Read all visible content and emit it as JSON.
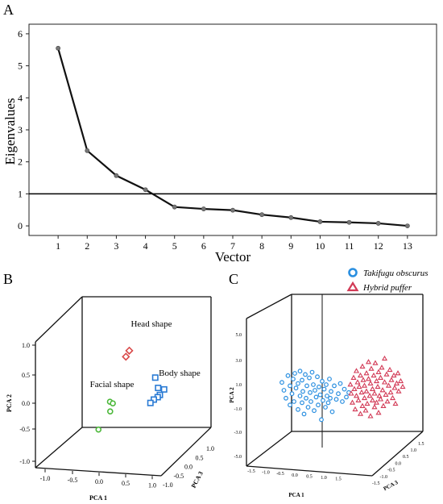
{
  "panels": {
    "a": {
      "letter": "A"
    },
    "b": {
      "letter": "B"
    },
    "c": {
      "letter": "C"
    }
  },
  "chart_data": [
    {
      "type": "line",
      "panel": "A",
      "title": "",
      "xlabel": "Vector",
      "ylabel": "Eigenvalues",
      "x": [
        1,
        2,
        3,
        4,
        5,
        6,
        7,
        8,
        9,
        10,
        11,
        12,
        13
      ],
      "x_ticks": [
        "1",
        "2",
        "3",
        "4",
        "5",
        "6",
        "7",
        "8",
        "9",
        "10",
        "11",
        "12",
        "13"
      ],
      "y": [
        5.55,
        2.35,
        1.57,
        1.13,
        0.59,
        0.53,
        0.49,
        0.35,
        0.26,
        0.13,
        0.11,
        0.08,
        0.0
      ],
      "y_ticks": [
        "0",
        "1",
        "2",
        "3",
        "4",
        "5",
        "6"
      ],
      "xlim": [
        0,
        14
      ],
      "ylim": [
        -0.3,
        6.3
      ],
      "reference_line_y": 1,
      "line_color": "#111111",
      "marker_color": "#777777"
    },
    {
      "type": "scatter",
      "panel": "B",
      "projection": "3d",
      "xlabel": "PCA 1",
      "ylabel": "PCA 2",
      "zlabel": "PCA 3",
      "x_ticks": [
        "-1.0",
        "-0.5",
        "0.0",
        "0.5",
        "1.0"
      ],
      "y_ticks": [
        "-1.0",
        "-0.5",
        "0.0",
        "0.5",
        "1.0"
      ],
      "z_ticks": [
        "-1.0",
        "-0.5",
        "0.0",
        "0.5",
        "1.0"
      ],
      "groups": [
        {
          "label": "Head shape",
          "marker": "diamond",
          "color": "#d94a4a",
          "points": [
            [
              0.1,
              0.82,
              -0.2
            ],
            [
              0.02,
              0.72,
              -0.25
            ]
          ]
        },
        {
          "label": "Body shape",
          "marker": "square",
          "color": "#2a7bd4",
          "points": [
            [
              0.55,
              0.38,
              -0.35
            ],
            [
              0.62,
              0.22,
              -0.3
            ],
            [
              0.75,
              0.2,
              -0.25
            ],
            [
              0.7,
              0.12,
              -0.15
            ],
            [
              0.72,
              0.1,
              0.05
            ],
            [
              0.6,
              0.05,
              -0.1
            ],
            [
              0.55,
              0.0,
              -0.05
            ]
          ]
        },
        {
          "label": "Facial shape",
          "marker": "circle",
          "color": "#4cb83a",
          "points": [
            [
              -0.3,
              0.0,
              -0.3
            ],
            [
              -0.22,
              -0.02,
              -0.22
            ],
            [
              -0.28,
              -0.15,
              -0.25
            ],
            [
              -0.55,
              -0.45,
              -0.4
            ]
          ]
        }
      ]
    },
    {
      "type": "scatter",
      "panel": "C",
      "projection": "3d",
      "xlabel": "PCA 1",
      "ylabel": "PCA 2",
      "zlabel": "PCA 3",
      "x_ticks": [
        "-1.5",
        "-1.0",
        "-0.5",
        "0.0",
        "0.5",
        "1.0",
        "1.5"
      ],
      "y_ticks": [
        "-5.0",
        "-3.0",
        "-1.0",
        "1.0",
        "3.0",
        "5.0"
      ],
      "z_ticks": [
        "-1.5",
        "-1.0",
        "-0.5",
        "0.0",
        "0.5",
        "1.0",
        "1.5"
      ],
      "legend": [
        {
          "label": "Takifugu obscurus",
          "marker": "circle",
          "color": "#2a8fe0"
        },
        {
          "label": "Hybrid puffer",
          "marker": "triangle",
          "color": "#d23a56"
        }
      ],
      "series": [
        {
          "name": "Takifugu obscurus",
          "marker": "circle",
          "color": "#2a8fe0",
          "points": [
            [
              -1.0,
              1.2,
              0
            ],
            [
              -0.95,
              0.5,
              0
            ],
            [
              -0.9,
              -0.2,
              0
            ],
            [
              -0.85,
              1.8,
              0
            ],
            [
              -0.8,
              0.9,
              0
            ],
            [
              -0.8,
              -0.8,
              0
            ],
            [
              -0.75,
              0.2,
              0
            ],
            [
              -0.72,
              1.5,
              0
            ],
            [
              -0.7,
              -0.5,
              0
            ],
            [
              -0.68,
              2.0,
              0
            ],
            [
              -0.65,
              0.7,
              0
            ],
            [
              -0.6,
              -1.2,
              0
            ],
            [
              -0.6,
              1.1,
              0
            ],
            [
              -0.55,
              0.0,
              0
            ],
            [
              -0.55,
              2.2,
              0
            ],
            [
              -0.5,
              -0.6,
              0
            ],
            [
              -0.5,
              1.4,
              0
            ],
            [
              -0.48,
              0.4,
              0
            ],
            [
              -0.45,
              -1.6,
              0
            ],
            [
              -0.42,
              1.9,
              0
            ],
            [
              -0.4,
              -0.2,
              0
            ],
            [
              -0.38,
              0.9,
              0
            ],
            [
              -0.35,
              -1.0,
              0
            ],
            [
              -0.32,
              1.6,
              0
            ],
            [
              -0.3,
              0.3,
              0
            ],
            [
              -0.28,
              -0.5,
              0
            ],
            [
              -0.25,
              2.1,
              0
            ],
            [
              -0.22,
              1.0,
              0
            ],
            [
              -0.2,
              -1.3,
              0
            ],
            [
              -0.18,
              0.5,
              0
            ],
            [
              -0.15,
              -0.1,
              0
            ],
            [
              -0.12,
              1.7,
              0
            ],
            [
              -0.1,
              -0.8,
              0
            ],
            [
              -0.08,
              0.8,
              0
            ],
            [
              -0.05,
              0.1,
              0
            ],
            [
              -0.02,
              -2.1,
              0
            ],
            [
              0.0,
              1.3,
              0
            ],
            [
              0.02,
              -0.4,
              0
            ],
            [
              0.05,
              0.6,
              0
            ],
            [
              0.08,
              -1.0,
              0
            ],
            [
              0.1,
              1.0,
              0
            ],
            [
              0.12,
              0.0,
              0
            ],
            [
              0.15,
              -0.6,
              0
            ],
            [
              0.18,
              1.5,
              0
            ],
            [
              0.2,
              -0.2,
              0
            ],
            [
              0.22,
              0.4,
              0
            ],
            [
              0.25,
              -1.4,
              0
            ],
            [
              0.3,
              0.9,
              0
            ],
            [
              0.35,
              -0.3,
              0
            ],
            [
              0.4,
              0.2,
              0
            ],
            [
              0.45,
              1.1,
              0
            ],
            [
              0.5,
              -0.5,
              0
            ],
            [
              0.55,
              0.6,
              0
            ],
            [
              0.6,
              -0.1,
              0
            ],
            [
              0.66,
              0.3,
              0
            ]
          ]
        },
        {
          "name": "Hybrid puffer",
          "marker": "triangle",
          "color": "#d23a56",
          "points": [
            [
              0.7,
              1.0,
              0
            ],
            [
              0.72,
              0.2,
              0
            ],
            [
              0.75,
              -0.6,
              0
            ],
            [
              0.78,
              1.6,
              0
            ],
            [
              0.8,
              0.6,
              0
            ],
            [
              0.82,
              -1.2,
              0
            ],
            [
              0.85,
              2.2,
              0
            ],
            [
              0.85,
              0.0,
              0
            ],
            [
              0.88,
              1.2,
              0
            ],
            [
              0.9,
              -0.4,
              0
            ],
            [
              0.92,
              0.8,
              0
            ],
            [
              0.95,
              -1.6,
              0
            ],
            [
              0.95,
              1.8,
              0
            ],
            [
              0.98,
              0.3,
              0
            ],
            [
              1.0,
              -0.9,
              0
            ],
            [
              1.0,
              2.6,
              0
            ],
            [
              1.02,
              1.4,
              0
            ],
            [
              1.05,
              -0.2,
              0
            ],
            [
              1.05,
              0.9,
              0
            ],
            [
              1.08,
              -1.3,
              0
            ],
            [
              1.1,
              2.0,
              0
            ],
            [
              1.1,
              0.4,
              0
            ],
            [
              1.12,
              -0.7,
              0
            ],
            [
              1.15,
              1.5,
              0
            ],
            [
              1.15,
              3.0,
              0
            ],
            [
              1.18,
              0.0,
              0
            ],
            [
              1.2,
              -1.8,
              0
            ],
            [
              1.2,
              1.1,
              0
            ],
            [
              1.22,
              2.4,
              0
            ],
            [
              1.25,
              -0.4,
              0
            ],
            [
              1.25,
              0.6,
              0
            ],
            [
              1.28,
              1.8,
              0
            ],
            [
              1.3,
              -1.0,
              0
            ],
            [
              1.3,
              0.2,
              0
            ],
            [
              1.32,
              2.9,
              0
            ],
            [
              1.35,
              1.3,
              0
            ],
            [
              1.35,
              -0.6,
              0
            ],
            [
              1.38,
              0.8,
              0
            ],
            [
              1.4,
              2.1,
              0
            ],
            [
              1.4,
              -1.5,
              0
            ],
            [
              1.42,
              0.0,
              0
            ],
            [
              1.45,
              1.6,
              0
            ],
            [
              1.45,
              -0.3,
              0
            ],
            [
              1.48,
              2.5,
              0
            ],
            [
              1.5,
              0.5,
              0
            ],
            [
              1.52,
              -0.9,
              0
            ],
            [
              1.55,
              1.2,
              0
            ],
            [
              1.55,
              3.3,
              0
            ],
            [
              1.58,
              0.1,
              0
            ],
            [
              1.6,
              1.9,
              0
            ],
            [
              1.62,
              -0.5,
              0
            ],
            [
              1.65,
              0.9,
              0
            ],
            [
              1.68,
              2.3,
              0
            ],
            [
              1.7,
              0.3,
              0
            ],
            [
              1.72,
              1.4,
              0
            ],
            [
              1.75,
              -0.2,
              0
            ],
            [
              1.78,
              1.8,
              0
            ],
            [
              1.8,
              0.7,
              0
            ],
            [
              1.82,
              -0.7,
              0
            ],
            [
              1.85,
              1.1,
              0
            ],
            [
              1.88,
              2.0,
              0
            ],
            [
              1.9,
              0.4,
              0
            ],
            [
              1.95,
              1.3,
              0
            ],
            [
              2.0,
              0.8,
              0
            ]
          ]
        }
      ]
    }
  ]
}
